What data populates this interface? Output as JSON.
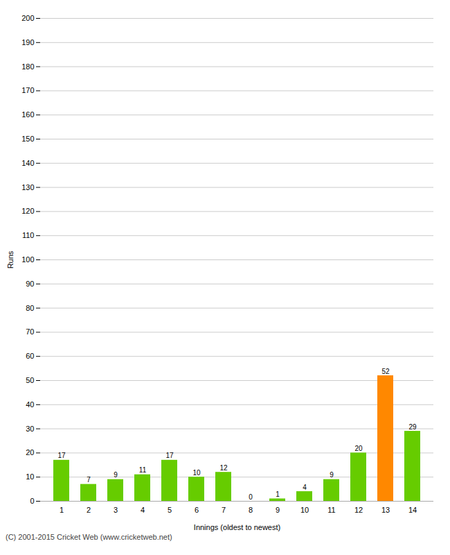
{
  "chart_data": {
    "type": "bar",
    "xlabel": "Innings (oldest to newest)",
    "ylabel": "Runs",
    "categories": [
      "1",
      "2",
      "3",
      "4",
      "5",
      "6",
      "7",
      "8",
      "9",
      "10",
      "11",
      "12",
      "13",
      "14"
    ],
    "values": [
      17,
      7,
      9,
      11,
      17,
      10,
      12,
      0,
      1,
      4,
      9,
      20,
      52,
      29
    ],
    "colors": [
      "#66cc00",
      "#66cc00",
      "#66cc00",
      "#66cc00",
      "#66cc00",
      "#66cc00",
      "#66cc00",
      "#66cc00",
      "#66cc00",
      "#66cc00",
      "#66cc00",
      "#66cc00",
      "#ff8800",
      "#66cc00"
    ],
    "ylim": [
      0,
      200
    ],
    "yticks": [
      0,
      10,
      20,
      30,
      40,
      50,
      60,
      70,
      80,
      90,
      100,
      110,
      120,
      130,
      140,
      150,
      160,
      170,
      180,
      190,
      200
    ],
    "grid": true,
    "data_labels": true,
    "caption": "(C) 2001-2015 Cricket Web (www.cricketweb.net)"
  }
}
